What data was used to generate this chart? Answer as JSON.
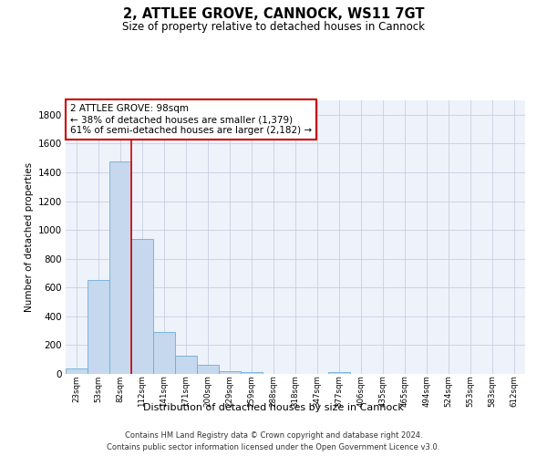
{
  "title": "2, ATTLEE GROVE, CANNOCK, WS11 7GT",
  "subtitle": "Size of property relative to detached houses in Cannock",
  "xlabel": "Distribution of detached houses by size in Cannock",
  "ylabel": "Number of detached properties",
  "categories": [
    "23sqm",
    "53sqm",
    "82sqm",
    "112sqm",
    "141sqm",
    "171sqm",
    "200sqm",
    "229sqm",
    "259sqm",
    "288sqm",
    "318sqm",
    "347sqm",
    "377sqm",
    "406sqm",
    "435sqm",
    "465sqm",
    "494sqm",
    "524sqm",
    "553sqm",
    "583sqm",
    "612sqm"
  ],
  "values": [
    40,
    650,
    1475,
    935,
    290,
    125,
    65,
    22,
    15,
    0,
    0,
    0,
    12,
    0,
    0,
    0,
    0,
    0,
    0,
    0,
    0
  ],
  "bar_color": "#c5d8ee",
  "bar_edge_color": "#6aaed6",
  "red_line_bin": 2,
  "annotation_text": "2 ATTLEE GROVE: 98sqm\n← 38% of detached houses are smaller (1,379)\n61% of semi-detached houses are larger (2,182) →",
  "annotation_box_color": "#cc0000",
  "ylim": [
    0,
    1900
  ],
  "yticks": [
    0,
    200,
    400,
    600,
    800,
    1000,
    1200,
    1400,
    1600,
    1800
  ],
  "footer_line1": "Contains HM Land Registry data © Crown copyright and database right 2024.",
  "footer_line2": "Contains public sector information licensed under the Open Government Licence v3.0.",
  "bg_color": "#eef2fb",
  "grid_color": "#c8cfe0"
}
